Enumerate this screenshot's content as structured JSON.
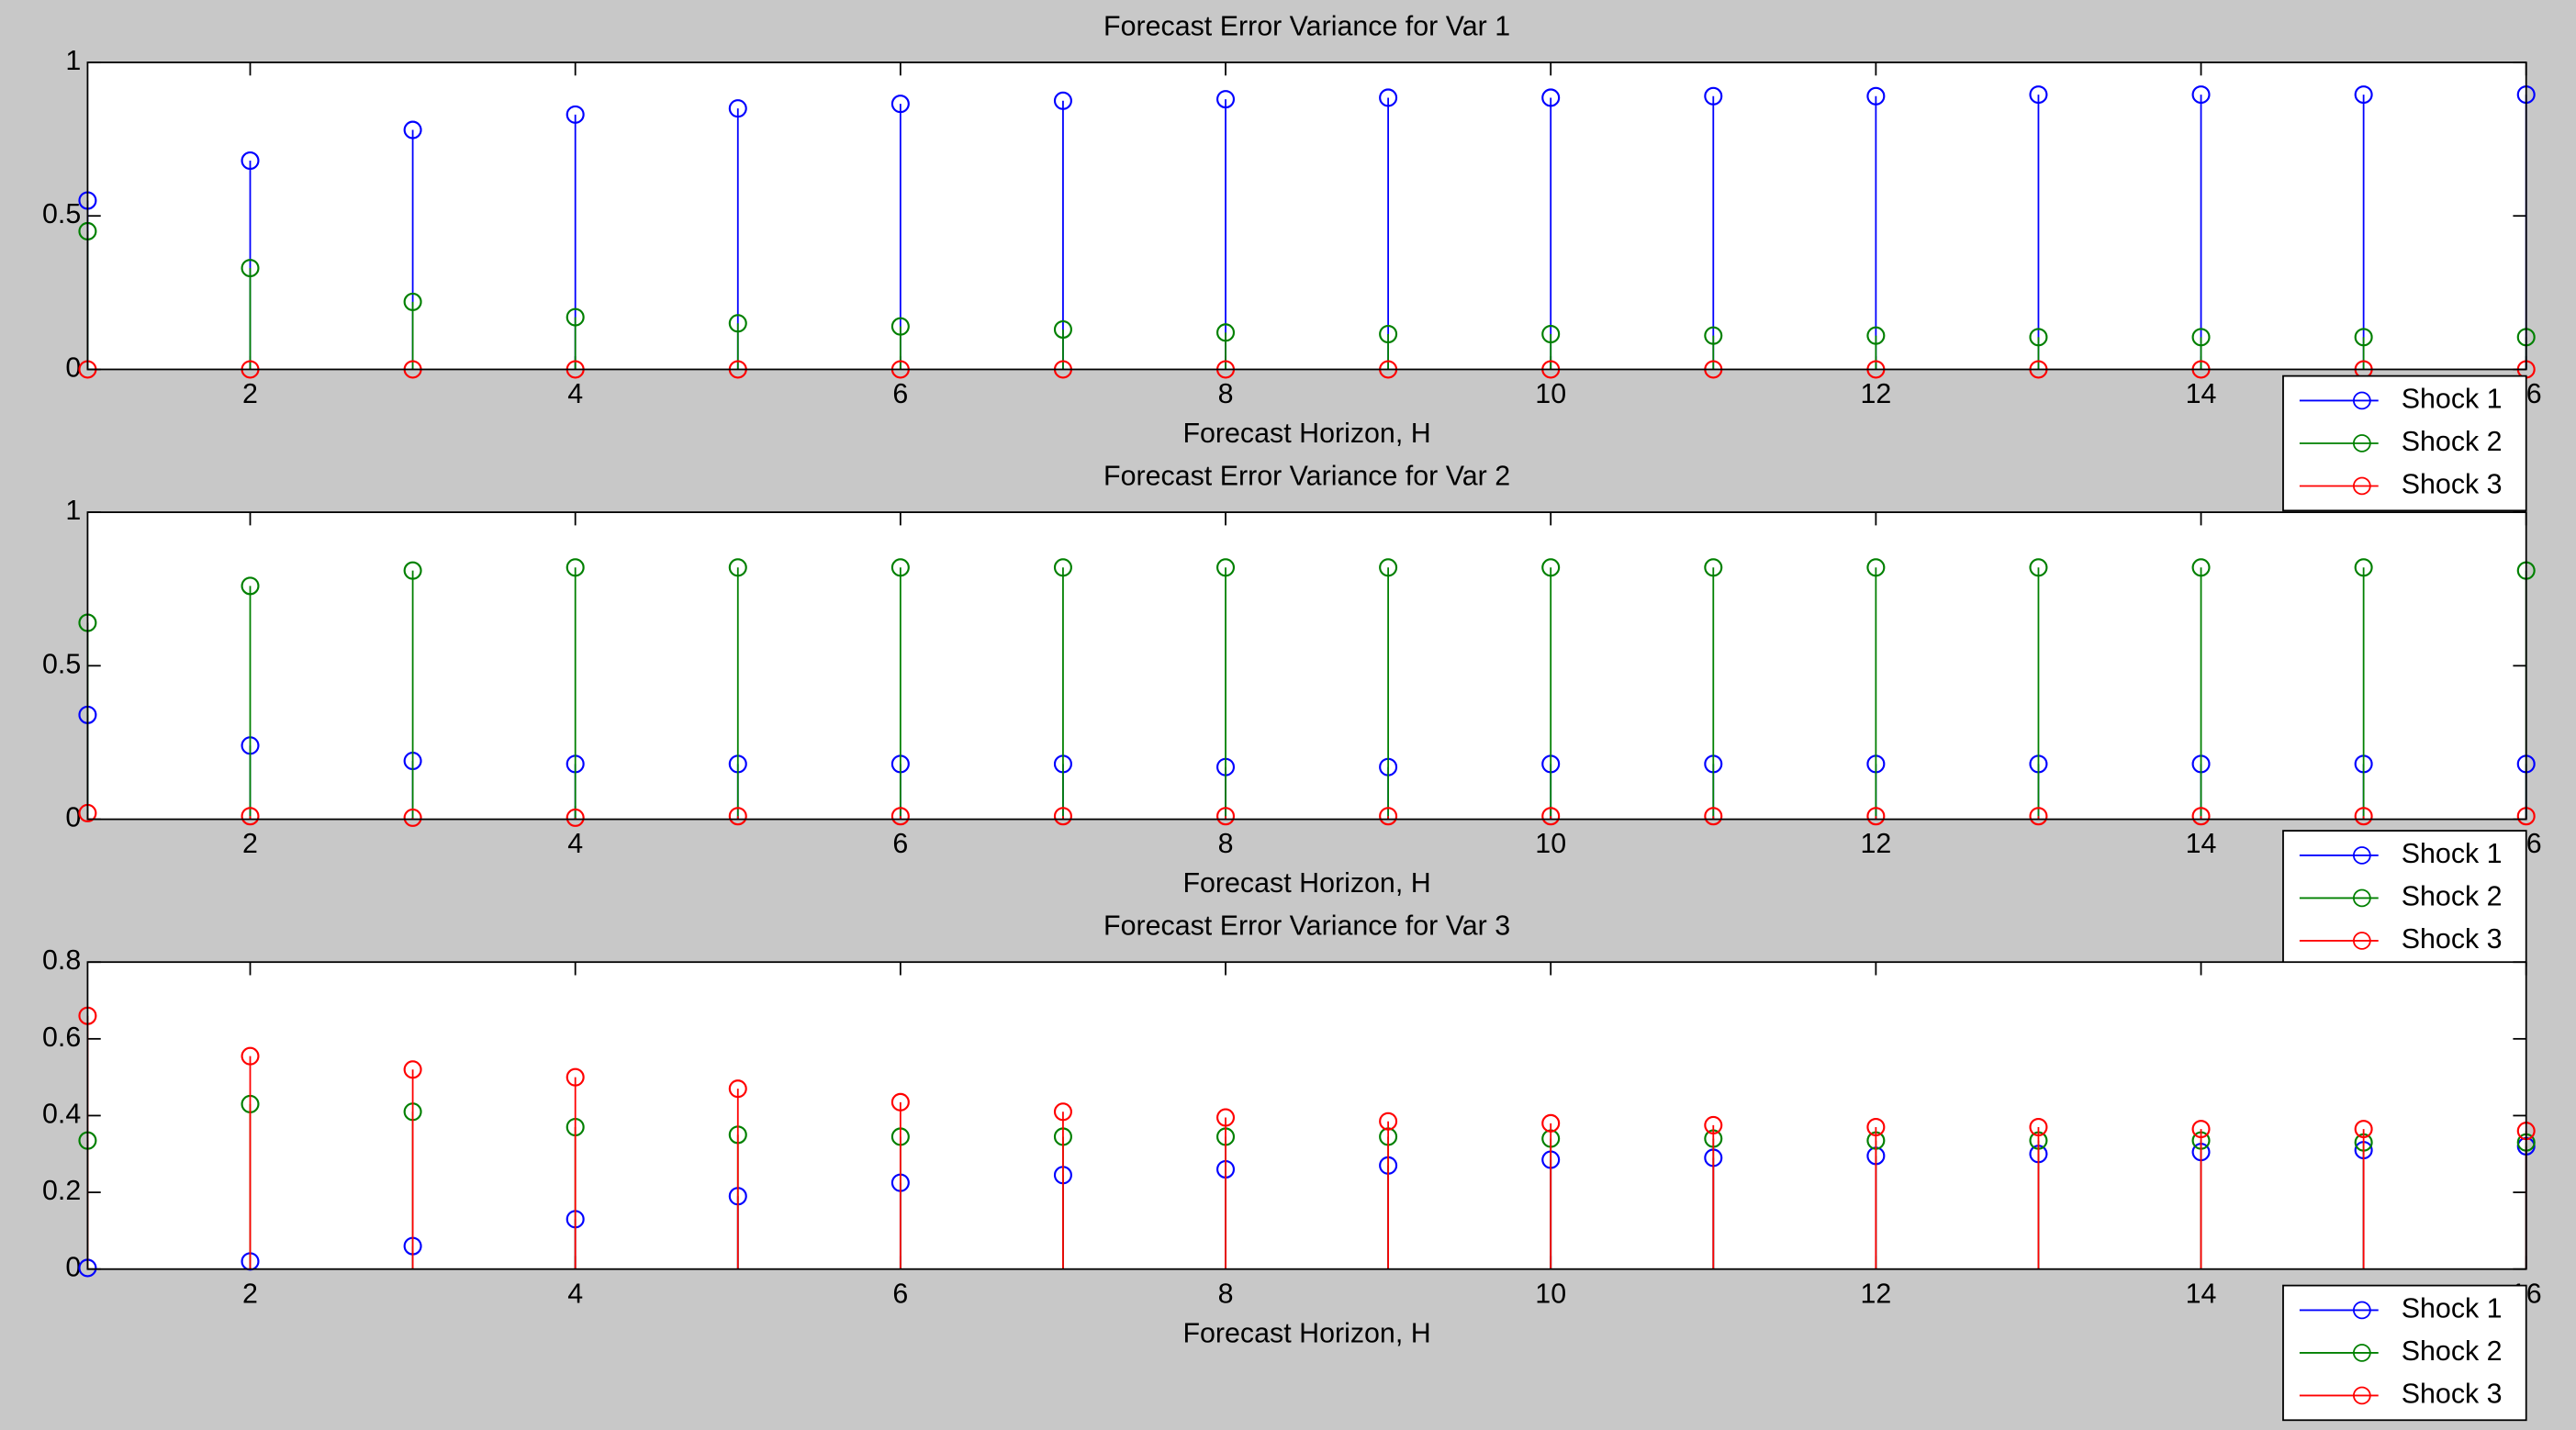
{
  "chart_data": [
    {
      "type": "stem",
      "title": "Forecast Error Variance for Var 1",
      "xlabel": "Forecast Horizon, H",
      "x": [
        1,
        2,
        3,
        4,
        5,
        6,
        7,
        8,
        9,
        10,
        11,
        12,
        13,
        14,
        15,
        16
      ],
      "series": [
        {
          "name": "Shock 1",
          "color": "#0000ff",
          "values": [
            0.55,
            0.68,
            0.78,
            0.83,
            0.85,
            0.865,
            0.875,
            0.88,
            0.885,
            0.885,
            0.89,
            0.89,
            0.895,
            0.895,
            0.895,
            0.895
          ]
        },
        {
          "name": "Shock 2",
          "color": "#008000",
          "values": [
            0.45,
            0.33,
            0.22,
            0.17,
            0.15,
            0.14,
            0.13,
            0.12,
            0.115,
            0.115,
            0.11,
            0.11,
            0.105,
            0.105,
            0.105,
            0.105
          ]
        },
        {
          "name": "Shock 3",
          "color": "#ff0000",
          "values": [
            0,
            0,
            0,
            0,
            0,
            0,
            0,
            0,
            0,
            0,
            0,
            0,
            0,
            0,
            0,
            0
          ]
        }
      ],
      "xlim": [
        1,
        16
      ],
      "xticks": [
        2,
        4,
        6,
        8,
        10,
        12,
        14,
        16
      ],
      "ylim": [
        0,
        1
      ],
      "yticks": [
        0,
        0.5,
        1
      ],
      "legend": "southeast"
    },
    {
      "type": "stem",
      "title": "Forecast Error Variance for Var 2",
      "xlabel": "Forecast Horizon, H",
      "x": [
        1,
        2,
        3,
        4,
        5,
        6,
        7,
        8,
        9,
        10,
        11,
        12,
        13,
        14,
        15,
        16
      ],
      "series": [
        {
          "name": "Shock 1",
          "color": "#0000ff",
          "values": [
            0.34,
            0.24,
            0.19,
            0.18,
            0.18,
            0.18,
            0.18,
            0.17,
            0.17,
            0.18,
            0.18,
            0.18,
            0.18,
            0.18,
            0.18,
            0.18
          ]
        },
        {
          "name": "Shock 2",
          "color": "#008000",
          "values": [
            0.64,
            0.76,
            0.81,
            0.82,
            0.82,
            0.82,
            0.82,
            0.82,
            0.82,
            0.82,
            0.82,
            0.82,
            0.82,
            0.82,
            0.82,
            0.81
          ]
        },
        {
          "name": "Shock 3",
          "color": "#ff0000",
          "values": [
            0.02,
            0.01,
            0.005,
            0.005,
            0.01,
            0.01,
            0.01,
            0.01,
            0.01,
            0.01,
            0.01,
            0.01,
            0.01,
            0.01,
            0.01,
            0.01
          ]
        }
      ],
      "xlim": [
        1,
        16
      ],
      "xticks": [
        2,
        4,
        6,
        8,
        10,
        12,
        14,
        16
      ],
      "ylim": [
        0,
        1
      ],
      "yticks": [
        0,
        0.5,
        1
      ],
      "legend": "southeast"
    },
    {
      "type": "stem",
      "title": "Forecast Error Variance for Var 3",
      "xlabel": "Forecast Horizon, H",
      "x": [
        1,
        2,
        3,
        4,
        5,
        6,
        7,
        8,
        9,
        10,
        11,
        12,
        13,
        14,
        15,
        16
      ],
      "series": [
        {
          "name": "Shock 1",
          "color": "#0000ff",
          "values": [
            0.003,
            0.02,
            0.06,
            0.13,
            0.19,
            0.225,
            0.245,
            0.26,
            0.27,
            0.285,
            0.29,
            0.295,
            0.3,
            0.305,
            0.31,
            0.32
          ]
        },
        {
          "name": "Shock 2",
          "color": "#008000",
          "values": [
            0.335,
            0.43,
            0.41,
            0.37,
            0.35,
            0.345,
            0.345,
            0.345,
            0.345,
            0.34,
            0.34,
            0.335,
            0.335,
            0.335,
            0.33,
            0.33
          ]
        },
        {
          "name": "Shock 3",
          "color": "#ff0000",
          "values": [
            0.66,
            0.555,
            0.52,
            0.5,
            0.47,
            0.435,
            0.41,
            0.395,
            0.385,
            0.38,
            0.375,
            0.37,
            0.37,
            0.365,
            0.365,
            0.36
          ]
        }
      ],
      "xlim": [
        1,
        16
      ],
      "xticks": [
        2,
        4,
        6,
        8,
        10,
        12,
        14,
        16
      ],
      "ylim": [
        0,
        0.8
      ],
      "yticks": [
        0,
        0.2,
        0.4,
        0.6,
        0.8
      ],
      "legend": "southeast"
    }
  ]
}
